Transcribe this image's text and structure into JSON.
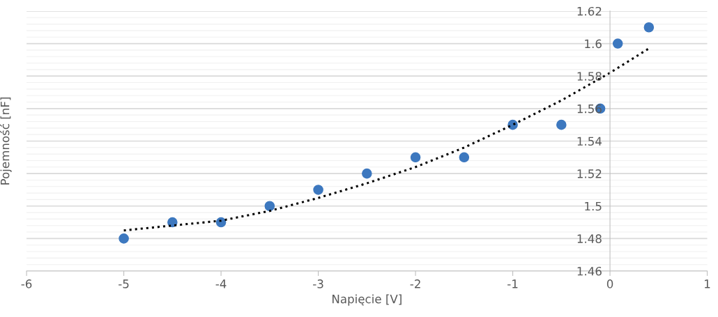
{
  "chart_data": {
    "type": "scatter",
    "xlabel": "Napięcie [V]",
    "ylabel": "Pojemność [nF]",
    "xlim": [
      -6,
      1
    ],
    "xticks": [
      -6,
      -5,
      -4,
      -3,
      -2,
      -1,
      0,
      1
    ],
    "ylim": [
      1.46,
      1.62
    ],
    "yticks": [
      1.46,
      1.48,
      1.5,
      1.52,
      1.54,
      1.56,
      1.58,
      1.6,
      1.62
    ],
    "grid": "y",
    "marker": "circle",
    "legend": false,
    "series": [
      {
        "color": "#3d78bf",
        "x": [
          -5,
          -4.5,
          -4,
          -3.5,
          -3,
          -2.5,
          -2,
          -1.5,
          -1,
          -0.5,
          -0.1,
          0.08,
          0.4
        ],
        "values": [
          1.48,
          1.49,
          1.49,
          1.5,
          1.51,
          1.52,
          1.53,
          1.53,
          1.55,
          1.55,
          1.56,
          1.6,
          1.61
        ]
      },
      {
        "type": "line",
        "color": "#000000",
        "line_style": "dotted",
        "marker": "none",
        "x": [
          -5,
          -4.5,
          -4,
          -3.5,
          -3,
          -2.5,
          -2,
          -1.5,
          -1,
          -0.5,
          0,
          0.4
        ],
        "values": [
          1.485,
          1.488,
          1.491,
          1.497,
          1.505,
          1.514,
          1.524,
          1.536,
          1.55,
          1.565,
          1.582,
          1.597
        ]
      }
    ]
  }
}
